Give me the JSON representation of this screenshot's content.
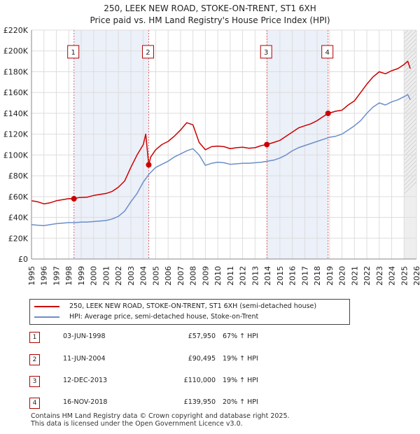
{
  "chart_data": {
    "type": "line",
    "title": "250, LEEK NEW ROAD, STOKE-ON-TRENT, ST1 6XH",
    "subtitle": "Price paid vs. HM Land Registry's House Price Index (HPI)",
    "ylim": [
      0,
      220000
    ],
    "xlim": [
      1995,
      2026
    ],
    "y_ticks": [
      0,
      20000,
      40000,
      60000,
      80000,
      100000,
      120000,
      140000,
      160000,
      180000,
      200000,
      220000
    ],
    "y_tick_labels": [
      "£0",
      "£20K",
      "£40K",
      "£60K",
      "£80K",
      "£100K",
      "£120K",
      "£140K",
      "£160K",
      "£180K",
      "£200K",
      "£220K"
    ],
    "x_tick_labels": [
      "1995",
      "1996",
      "1997",
      "1998",
      "1999",
      "2000",
      "2001",
      "2002",
      "2003",
      "2004",
      "2005",
      "2006",
      "2007",
      "2008",
      "2009",
      "2010",
      "2011",
      "2012",
      "2013",
      "2014",
      "2015",
      "2016",
      "2017",
      "2018",
      "2019",
      "2020",
      "2021",
      "2022",
      "2023",
      "2024",
      "2025",
      "2026"
    ],
    "grid": true,
    "series": [
      {
        "name": "250, LEEK NEW ROAD, STOKE-ON-TRENT, ST1 6XH (semi-detached house)",
        "color": "#cc0000",
        "x": [
          1995.0,
          1995.5,
          1996.0,
          1996.5,
          1997.0,
          1997.5,
          1998.0,
          1998.42,
          1998.8,
          1999.5,
          2000.0,
          2000.5,
          2001.0,
          2001.5,
          2002.0,
          2002.5,
          2003.0,
          2003.5,
          2004.0,
          2004.2,
          2004.44,
          2004.6,
          2005.0,
          2005.5,
          2006.0,
          2006.5,
          2007.0,
          2007.5,
          2008.0,
          2008.5,
          2009.0,
          2009.5,
          2010.0,
          2010.5,
          2011.0,
          2011.5,
          2012.0,
          2012.5,
          2013.0,
          2013.5,
          2013.95,
          2014.5,
          2015.0,
          2015.5,
          2016.0,
          2016.5,
          2017.0,
          2017.5,
          2018.0,
          2018.5,
          2018.88,
          2019.5,
          2020.0,
          2020.5,
          2021.0,
          2021.5,
          2022.0,
          2022.5,
          2023.0,
          2023.5,
          2024.0,
          2024.5,
          2025.0,
          2025.3,
          2025.5
        ],
        "values": [
          56000,
          55000,
          53000,
          54000,
          56000,
          57000,
          58000,
          57950,
          59000,
          59500,
          61000,
          62000,
          63000,
          65000,
          69000,
          75000,
          88000,
          100000,
          110000,
          120000,
          90495,
          98000,
          105000,
          110000,
          113000,
          118000,
          124000,
          131000,
          129000,
          112000,
          105000,
          108000,
          108500,
          108000,
          106000,
          107000,
          107500,
          106500,
          107000,
          109000,
          110000,
          112000,
          114000,
          118000,
          122000,
          126000,
          128000,
          130000,
          133000,
          137000,
          139950,
          142000,
          143000,
          148000,
          152000,
          160000,
          168000,
          175000,
          180000,
          178000,
          181000,
          183000,
          187000,
          190000,
          183000
        ]
      },
      {
        "name": "HPI: Average price, semi-detached house, Stoke-on-Trent",
        "color": "#6b8fc8",
        "x": [
          1995.0,
          1995.5,
          1996.0,
          1996.5,
          1997.0,
          1997.5,
          1998.0,
          1998.5,
          1999.0,
          1999.5,
          2000.0,
          2000.5,
          2001.0,
          2001.5,
          2002.0,
          2002.5,
          2003.0,
          2003.5,
          2004.0,
          2004.5,
          2005.0,
          2005.5,
          2006.0,
          2006.5,
          2007.0,
          2007.5,
          2008.0,
          2008.5,
          2009.0,
          2009.5,
          2010.0,
          2010.5,
          2011.0,
          2011.5,
          2012.0,
          2012.5,
          2013.0,
          2013.5,
          2014.0,
          2014.5,
          2015.0,
          2015.5,
          2016.0,
          2016.5,
          2017.0,
          2017.5,
          2018.0,
          2018.5,
          2019.0,
          2019.5,
          2020.0,
          2020.5,
          2021.0,
          2021.5,
          2022.0,
          2022.5,
          2023.0,
          2023.5,
          2024.0,
          2024.5,
          2025.0,
          2025.3,
          2025.5
        ],
        "values": [
          33000,
          32500,
          32000,
          33000,
          34000,
          34500,
          35000,
          35000,
          35500,
          35500,
          36000,
          36500,
          37000,
          38500,
          41000,
          46000,
          55000,
          63000,
          74000,
          82000,
          88000,
          91000,
          94000,
          98000,
          101000,
          104000,
          106000,
          100000,
          90000,
          92000,
          93000,
          92500,
          91000,
          91500,
          92000,
          92000,
          92500,
          93000,
          94000,
          95000,
          97000,
          100000,
          104000,
          107000,
          109000,
          111000,
          113000,
          115000,
          117000,
          118000,
          120000,
          124000,
          128000,
          133000,
          140000,
          146000,
          150000,
          148000,
          151000,
          153000,
          156000,
          158000,
          153000
        ]
      }
    ],
    "sales": [
      {
        "label": "1",
        "date": "03-JUN-1998",
        "year": 1998.42,
        "price": 57950,
        "price_text": "£57,950",
        "hpi": "67% ↑ HPI"
      },
      {
        "label": "2",
        "date": "11-JUN-2004",
        "year": 2004.44,
        "price": 90495,
        "price_text": "£90,495",
        "hpi": "19% ↑ HPI"
      },
      {
        "label": "3",
        "date": "12-DEC-2013",
        "year": 2013.95,
        "price": 110000,
        "price_text": "£110,000",
        "hpi": "19% ↑ HPI"
      },
      {
        "label": "4",
        "date": "16-NOV-2018",
        "year": 2018.88,
        "price": 139950,
        "price_text": "£139,950",
        "hpi": "20% ↑ HPI"
      }
    ],
    "shaded_ranges": [
      [
        1998.42,
        2004.44
      ],
      [
        2013.95,
        2018.88
      ]
    ],
    "future_from": 2025.0
  },
  "legend": {
    "property_label": "250, LEEK NEW ROAD, STOKE-ON-TRENT, ST1 6XH (semi-detached house)",
    "hpi_label": "HPI: Average price, semi-detached house, Stoke-on-Trent"
  },
  "footer": {
    "line1": "Contains HM Land Registry data © Crown copyright and database right 2025.",
    "line2": "This data is licensed under the Open Government Licence v3.0."
  }
}
